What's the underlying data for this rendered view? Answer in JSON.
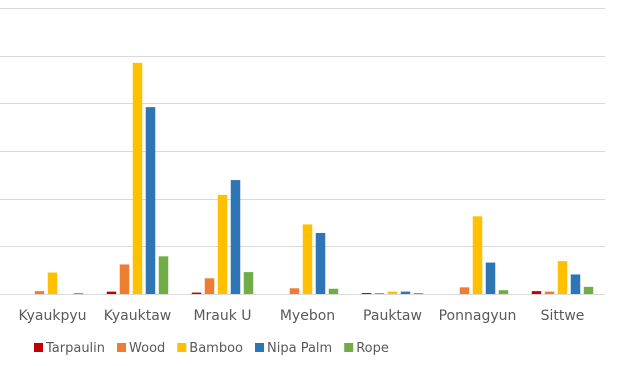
{
  "chart_data": {
    "type": "bar",
    "categories": [
      "Kyaukpyu",
      "Kyauktaw",
      "Mrauk U",
      "Myebon",
      "Pauktaw",
      "Ponnagyun",
      "Sittwe"
    ],
    "series": [
      {
        "name": "Tarpaulin",
        "color": "#c00000",
        "values": [
          0,
          0.05,
          0.03,
          0,
          0.02,
          0,
          0.06
        ]
      },
      {
        "name": "Wood",
        "color": "#ed7d31",
        "values": [
          0.06,
          0.62,
          0.33,
          0.12,
          0.02,
          0.14,
          0.05
        ]
      },
      {
        "name": "Bamboo",
        "color": "#ffc000",
        "values": [
          0.45,
          4.85,
          2.08,
          1.46,
          0.05,
          1.63,
          0.69
        ]
      },
      {
        "name": "Nipa Palm",
        "color": "#2e75b6",
        "values": [
          0,
          3.92,
          2.39,
          1.28,
          0.05,
          0.66,
          0.41
        ]
      },
      {
        "name": "Rope",
        "color": "#70ad47",
        "values": [
          0.02,
          0.79,
          0.46,
          0.11,
          0.02,
          0.08,
          0.15
        ]
      }
    ],
    "ylim": [
      0,
      6
    ],
    "yticks": [
      0,
      1,
      2,
      3,
      4,
      5,
      6
    ],
    "grid": true,
    "legend": "bottom"
  }
}
